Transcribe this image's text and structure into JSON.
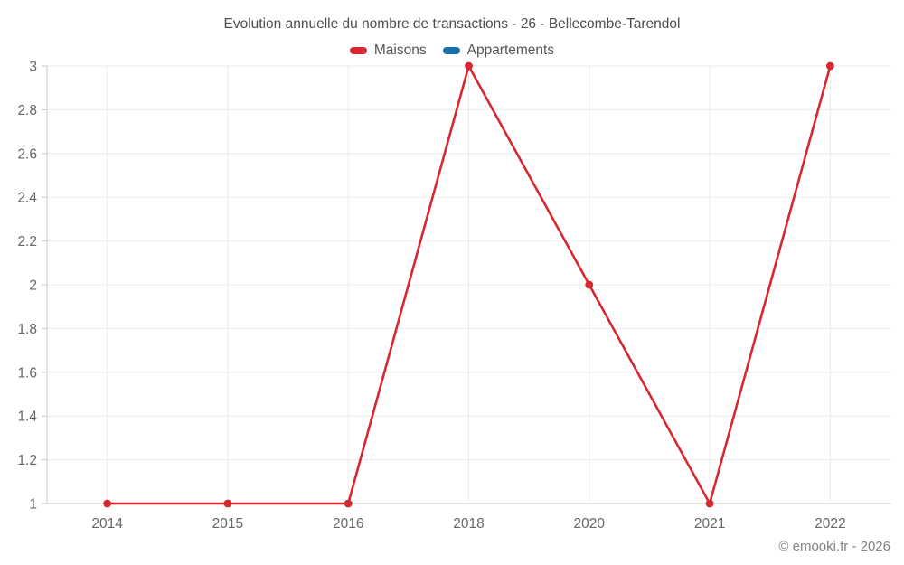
{
  "chart_data": {
    "type": "line",
    "title": "Evolution annuelle du nombre de transactions - 26 - Bellecombe-Tarendol",
    "xlabel": "",
    "ylabel": "",
    "categories": [
      "2014",
      "2015",
      "2016",
      "2018",
      "2020",
      "2021",
      "2022"
    ],
    "series": [
      {
        "name": "Maisons",
        "color": "#d7282f",
        "values": [
          1,
          1,
          1,
          3,
          2,
          1,
          3
        ]
      },
      {
        "name": "Appartements",
        "color": "#1571a8",
        "values": []
      }
    ],
    "ylim": [
      1,
      3
    ],
    "ytick_values": [
      1,
      1.2,
      1.4,
      1.6,
      1.8,
      2,
      2.2,
      2.4,
      2.6,
      2.8,
      3
    ],
    "ytick_labels": [
      "1",
      "1.2",
      "1.4",
      "1.6",
      "1.8",
      "2",
      "2.2",
      "2.4",
      "2.6",
      "2.8",
      "3"
    ],
    "grid": true,
    "legend_position": "top",
    "style": {
      "grid_color": "#ececec",
      "axis_color": "#c9c9c9",
      "tick_color": "#666666"
    }
  },
  "footer": {
    "text": "© emooki.fr - 2026"
  }
}
